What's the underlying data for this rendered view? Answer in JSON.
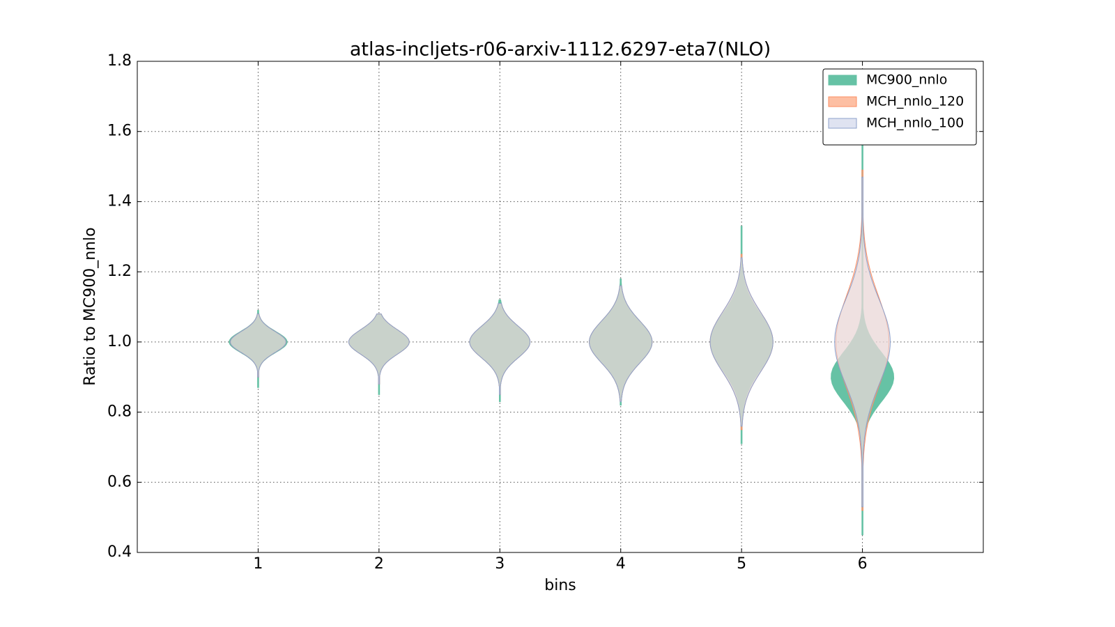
{
  "chart_data": {
    "type": "violin",
    "title": "atlas-incljets-r06-arxiv-1112.6297-eta7(NLO)",
    "x_label": "bins",
    "y_label": "Ratio to MC900_nnlo",
    "xlim": [
      0,
      7
    ],
    "xticks": [
      1,
      2,
      3,
      4,
      5,
      6
    ],
    "ylim": [
      0.4,
      1.8
    ],
    "yticks": [
      0.4,
      0.6,
      0.8,
      {
        "value": 1,
        "label": "1.0"
      },
      1.2,
      1.4,
      1.6,
      1.8
    ],
    "grid": true,
    "legend": "upper right",
    "series": [
      {
        "name": "MC900_nnlo",
        "color": "#66c2a5",
        "edge": "#66c2a5",
        "violins": [
          {
            "x": 1,
            "min": 0.87,
            "center": 1.0,
            "max": 1.09,
            "width": 0.24,
            "sd": 0.03
          },
          {
            "x": 2,
            "min": 0.85,
            "center": 1.0,
            "max": 1.08,
            "width": 0.25,
            "sd": 0.035
          },
          {
            "x": 3,
            "min": 0.83,
            "center": 1.0,
            "max": 1.12,
            "width": 0.25,
            "sd": 0.045
          },
          {
            "x": 4,
            "min": 0.82,
            "center": 1.0,
            "max": 1.18,
            "width": 0.26,
            "sd": 0.06
          },
          {
            "x": 5,
            "min": 0.71,
            "center": 1.0,
            "max": 1.33,
            "width": 0.26,
            "sd": 0.08
          },
          {
            "x": 6,
            "min": 0.45,
            "center": 0.9,
            "max": 1.6,
            "width": 0.26,
            "sd": 0.07
          }
        ]
      },
      {
        "name": "MCH_nnlo_120",
        "color": "#fdbfa3",
        "edge": "#fc8d62",
        "violins": [
          {
            "x": 1,
            "min": 0.9,
            "center": 1.0,
            "max": 1.08,
            "width": 0.23,
            "sd": 0.03
          },
          {
            "x": 2,
            "min": 0.88,
            "center": 1.0,
            "max": 1.08,
            "width": 0.25,
            "sd": 0.035
          },
          {
            "x": 3,
            "min": 0.85,
            "center": 1.0,
            "max": 1.11,
            "width": 0.25,
            "sd": 0.045
          },
          {
            "x": 4,
            "min": 0.83,
            "center": 1.0,
            "max": 1.16,
            "width": 0.26,
            "sd": 0.06
          },
          {
            "x": 5,
            "min": 0.75,
            "center": 1.0,
            "max": 1.25,
            "width": 0.26,
            "sd": 0.085
          },
          {
            "x": 6,
            "min": 0.52,
            "center": 1.0,
            "max": 1.49,
            "width": 0.22,
            "sd": 0.13
          }
        ]
      },
      {
        "name": "MCH_nnlo_100",
        "color": "#dfe3f1",
        "edge": "#8da0cb",
        "violins": [
          {
            "x": 1,
            "min": 0.9,
            "center": 1.0,
            "max": 1.08,
            "width": 0.23,
            "sd": 0.03
          },
          {
            "x": 2,
            "min": 0.88,
            "center": 1.0,
            "max": 1.08,
            "width": 0.25,
            "sd": 0.035
          },
          {
            "x": 3,
            "min": 0.85,
            "center": 1.0,
            "max": 1.11,
            "width": 0.25,
            "sd": 0.045
          },
          {
            "x": 4,
            "min": 0.83,
            "center": 1.0,
            "max": 1.16,
            "width": 0.26,
            "sd": 0.06
          },
          {
            "x": 5,
            "min": 0.76,
            "center": 1.0,
            "max": 1.24,
            "width": 0.26,
            "sd": 0.085
          },
          {
            "x": 6,
            "min": 0.53,
            "center": 1.0,
            "max": 1.47,
            "width": 0.23,
            "sd": 0.12
          }
        ]
      }
    ]
  }
}
